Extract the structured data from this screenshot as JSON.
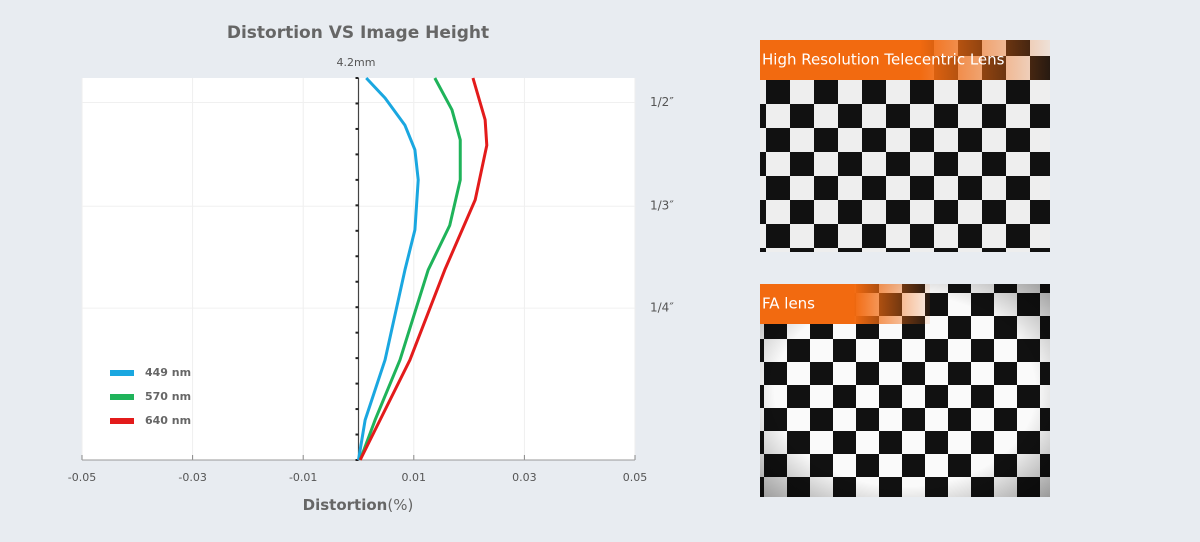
{
  "chart_data": {
    "type": "line",
    "title": "Distortion VS Image Height",
    "top_label": "4.2mm",
    "x_label": "Distortion",
    "x_label_unit": "(%)",
    "xlim": [
      -0.05,
      0.05
    ],
    "xticks": [
      -0.05,
      -0.03,
      -0.01,
      0.01,
      0.03,
      0.05
    ],
    "ylim": [
      0,
      4.2
    ],
    "yticks": [
      {
        "value": 3.93,
        "label": "1/2″"
      },
      {
        "value": 2.79,
        "label": "1/3″"
      },
      {
        "value": 1.67,
        "label": "1/4″"
      }
    ],
    "yminorticks": [
      0,
      0.28,
      0.56,
      0.84,
      1.12,
      1.4,
      1.68,
      1.96,
      2.24,
      2.52,
      2.8,
      3.08,
      3.36,
      3.64,
      3.92,
      4.2
    ],
    "grid": true,
    "legend": "lower left",
    "series": [
      {
        "name": "449 nm",
        "color": "#1aa7e0",
        "x": [
          0,
          0.0012,
          0.0048,
          0.0084,
          0.0102,
          0.0108,
          0.0102,
          0.0084,
          0.0048,
          0.0014
        ],
        "y": [
          0,
          0.44,
          1.1,
          2.09,
          2.53,
          3.08,
          3.41,
          3.68,
          3.98,
          4.2
        ]
      },
      {
        "name": "570 nm",
        "color": "#1fb35a",
        "x": [
          0.0003,
          0.003,
          0.0075,
          0.0126,
          0.0165,
          0.0184,
          0.0184,
          0.0169,
          0.0138
        ],
        "y": [
          0,
          0.44,
          1.1,
          2.09,
          2.58,
          3.08,
          3.52,
          3.85,
          4.2
        ]
      },
      {
        "name": "640 nm",
        "color": "#e31b1b",
        "x": [
          0.0003,
          0.0039,
          0.0093,
          0.0156,
          0.0211,
          0.0232,
          0.0229,
          0.0207
        ],
        "y": [
          0,
          0.44,
          1.1,
          2.09,
          2.86,
          3.46,
          3.74,
          4.2
        ]
      }
    ]
  },
  "panels": [
    {
      "caption": "High Resolution Telecentric Lens"
    },
    {
      "caption": "FA lens"
    }
  ]
}
